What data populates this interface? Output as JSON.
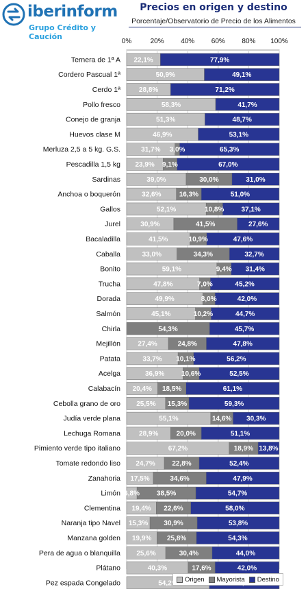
{
  "header": {
    "brand": "iberinform",
    "tagline": "Grupo Crédito y Caución"
  },
  "colors": {
    "origen": "#c0c0c0",
    "mayorista": "#7f7f7f",
    "destino": "#283593",
    "title": "#1c2e78",
    "logo": "#1f72b4"
  },
  "chart_data": {
    "type": "bar",
    "orientation": "horizontal",
    "stacked": "percent",
    "title": "Precios en origen y destino",
    "subtitle": "Porcentaje/Observatorio de Precio de los Alimentos",
    "xlim": [
      0,
      100
    ],
    "x_ticks": [
      "0%",
      "20%",
      "40%",
      "60%",
      "80%",
      "100%"
    ],
    "x_axis_position": "top",
    "grid": true,
    "legend_position": "bottom-right",
    "categories": [
      "Ternera de 1ª A",
      "Cordero Pascual 1ª",
      "Cerdo 1ª",
      "Pollo fresco",
      "Conejo de granja",
      "Huevos clase M",
      "Merluza 2,5 a 5 kg. G.S.",
      "Pescadilla 1,5 kg",
      "Sardinas",
      "Anchoa o boquerón",
      "Gallos",
      "Jurel",
      "Bacaladilla",
      "Caballa",
      "Bonito",
      "Trucha",
      "Dorada",
      "Salmón",
      "Chirla",
      "Mejillón",
      "Patata",
      "Acelga",
      "Calabacín",
      "Cebolla grano de oro",
      "Judía verde plana",
      "Lechuga Romana",
      "Pimiento verde tipo italiano",
      "Tomate redondo liso",
      "Zanahoria",
      "Limón",
      "Clementina",
      "Naranja tipo Navel",
      "Manzana golden",
      "Pera de agua o blanquilla",
      "Plátano",
      "Pez espada Congelado"
    ],
    "series": [
      {
        "name": "Origen",
        "values": [
          22.1,
          50.9,
          28.8,
          58.3,
          51.3,
          46.9,
          31.7,
          23.9,
          39.0,
          32.6,
          52.1,
          30.9,
          41.5,
          33.0,
          59.1,
          47.8,
          49.9,
          45.1,
          null,
          27.4,
          33.7,
          36.9,
          20.4,
          25.5,
          55.1,
          28.9,
          67.2,
          24.7,
          17.5,
          6.8,
          19.4,
          15.3,
          19.9,
          25.6,
          40.3,
          54.2
        ],
        "labels": [
          "22,1%",
          "50,9%",
          "28,8%",
          "58,3%",
          "51,3%",
          "46,9%",
          "31,7%",
          "23,9%",
          "39,0%",
          "32,6%",
          "52,1%",
          "30,9%",
          "41,5%",
          "33,0%",
          "59,1%",
          "47,8%",
          "49,9%",
          "45,1%",
          null,
          "27,4%",
          "33,7%",
          "36,9%",
          "20,4%",
          "25,5%",
          "55,1%",
          "28,9%",
          "67,2%",
          "24,7%",
          "17,5%",
          "6,8%",
          "19,4%",
          "15,3%",
          "19,9%",
          "25,6%",
          "40,3%",
          "54,2%"
        ]
      },
      {
        "name": "Mayorista",
        "values": [
          null,
          null,
          null,
          null,
          null,
          null,
          3.0,
          9.1,
          30.0,
          16.3,
          10.8,
          41.5,
          10.9,
          34.3,
          9.4,
          7.0,
          8.0,
          10.2,
          54.3,
          24.8,
          10.1,
          10.6,
          18.5,
          15.3,
          14.6,
          20.0,
          18.9,
          22.8,
          34.6,
          38.5,
          22.6,
          30.9,
          25.8,
          30.4,
          17.6,
          null
        ],
        "labels": [
          null,
          null,
          null,
          null,
          null,
          null,
          "3,0%",
          "9,1%",
          "30,0%",
          "16,3%",
          "10,8%",
          "41,5%",
          "10,9%",
          "34,3%",
          "9,4%",
          "7,0%",
          "8,0%",
          "10,2%",
          "54,3%",
          "24,8%",
          "10,1%",
          "10,6%",
          "18,5%",
          "15,3%",
          "14,6%",
          "20,0%",
          "18,9%",
          "22,8%",
          "34,6%",
          "38,5%",
          "22,6%",
          "30,9%",
          "25,8%",
          "30,4%",
          "17,6%",
          null
        ]
      },
      {
        "name": "Destino",
        "values": [
          77.9,
          49.1,
          71.2,
          41.7,
          48.7,
          53.1,
          65.3,
          67.0,
          31.0,
          51.0,
          37.1,
          27.6,
          47.6,
          32.7,
          31.4,
          45.2,
          42.0,
          44.7,
          45.7,
          47.8,
          56.2,
          52.5,
          61.1,
          59.3,
          30.3,
          51.1,
          13.8,
          52.4,
          47.9,
          54.7,
          58.0,
          53.8,
          54.3,
          44.0,
          42.0,
          45.8
        ],
        "labels": [
          "77,9%",
          "49,1%",
          "71,2%",
          "41,7%",
          "48,7%",
          "53,1%",
          "65,3%",
          "67,0%",
          "31,0%",
          "51,0%",
          "37,1%",
          "27,6%",
          "47,6%",
          "32,7%",
          "31,4%",
          "45,2%",
          "42,0%",
          "44,7%",
          "45,7%",
          "47,8%",
          "56,2%",
          "52,5%",
          "61,1%",
          "59,3%",
          "30,3%",
          "51,1%",
          "13,8%",
          "52,4%",
          "47,9%",
          "54,7%",
          "58,0%",
          "53,8%",
          "54,3%",
          "44,0%",
          "42,0%",
          "45,8%"
        ]
      }
    ]
  }
}
